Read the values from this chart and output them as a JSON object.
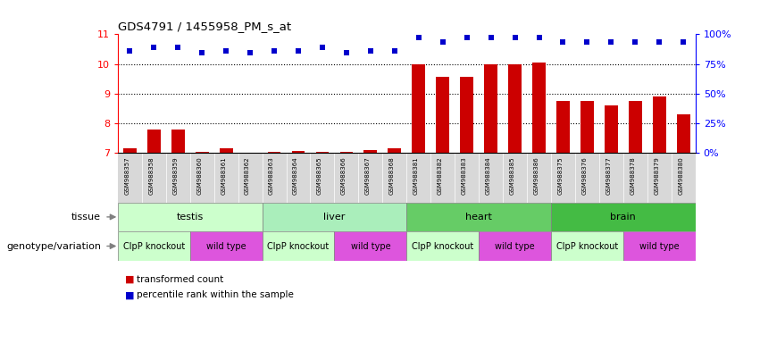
{
  "title": "GDS4791 / 1455958_PM_s_at",
  "samples": [
    "GSM988357",
    "GSM988358",
    "GSM988359",
    "GSM988360",
    "GSM988361",
    "GSM988362",
    "GSM988363",
    "GSM988364",
    "GSM988365",
    "GSM988366",
    "GSM988367",
    "GSM988368",
    "GSM988381",
    "GSM988382",
    "GSM988383",
    "GSM988384",
    "GSM988385",
    "GSM988386",
    "GSM988375",
    "GSM988376",
    "GSM988377",
    "GSM988378",
    "GSM988379",
    "GSM988380"
  ],
  "bar_values": [
    7.15,
    7.78,
    7.78,
    7.02,
    7.15,
    7.0,
    7.02,
    7.05,
    7.02,
    7.02,
    7.08,
    7.15,
    10.0,
    9.55,
    9.55,
    10.0,
    10.0,
    10.05,
    8.75,
    8.75,
    8.6,
    8.75,
    8.9,
    8.3
  ],
  "dot_values": [
    10.45,
    10.55,
    10.55,
    10.38,
    10.45,
    10.38,
    10.45,
    10.45,
    10.55,
    10.38,
    10.45,
    10.45,
    10.9,
    10.75,
    10.9,
    10.9,
    10.9,
    10.9,
    10.75,
    10.75,
    10.75,
    10.75,
    10.75,
    10.75
  ],
  "ylim": [
    7.0,
    11.0
  ],
  "yticks": [
    7,
    8,
    9,
    10,
    11
  ],
  "y2ticks": [
    0,
    25,
    50,
    75,
    100
  ],
  "bar_color": "#cc0000",
  "dot_color": "#0000cc",
  "xticklabel_bg": "#d8d8d8",
  "tissues": [
    {
      "label": "testis",
      "start": 0,
      "end": 6,
      "color": "#ccffcc"
    },
    {
      "label": "liver",
      "start": 6,
      "end": 12,
      "color": "#aaeebb"
    },
    {
      "label": "heart",
      "start": 12,
      "end": 18,
      "color": "#66cc66"
    },
    {
      "label": "brain",
      "start": 18,
      "end": 24,
      "color": "#44bb44"
    }
  ],
  "genotypes": [
    {
      "label": "ClpP knockout",
      "start": 0,
      "end": 3,
      "color": "#ccffcc"
    },
    {
      "label": "wild type",
      "start": 3,
      "end": 6,
      "color": "#dd55dd"
    },
    {
      "label": "ClpP knockout",
      "start": 6,
      "end": 9,
      "color": "#ccffcc"
    },
    {
      "label": "wild type",
      "start": 9,
      "end": 12,
      "color": "#dd55dd"
    },
    {
      "label": "ClpP knockout",
      "start": 12,
      "end": 15,
      "color": "#ccffcc"
    },
    {
      "label": "wild type",
      "start": 15,
      "end": 18,
      "color": "#dd55dd"
    },
    {
      "label": "ClpP knockout",
      "start": 18,
      "end": 21,
      "color": "#ccffcc"
    },
    {
      "label": "wild type",
      "start": 21,
      "end": 24,
      "color": "#dd55dd"
    }
  ],
  "tissue_label": "tissue",
  "geno_label": "genotype/variation",
  "legend_items": [
    {
      "label": "transformed count",
      "color": "#cc0000"
    },
    {
      "label": "percentile rank within the sample",
      "color": "#0000cc"
    }
  ]
}
